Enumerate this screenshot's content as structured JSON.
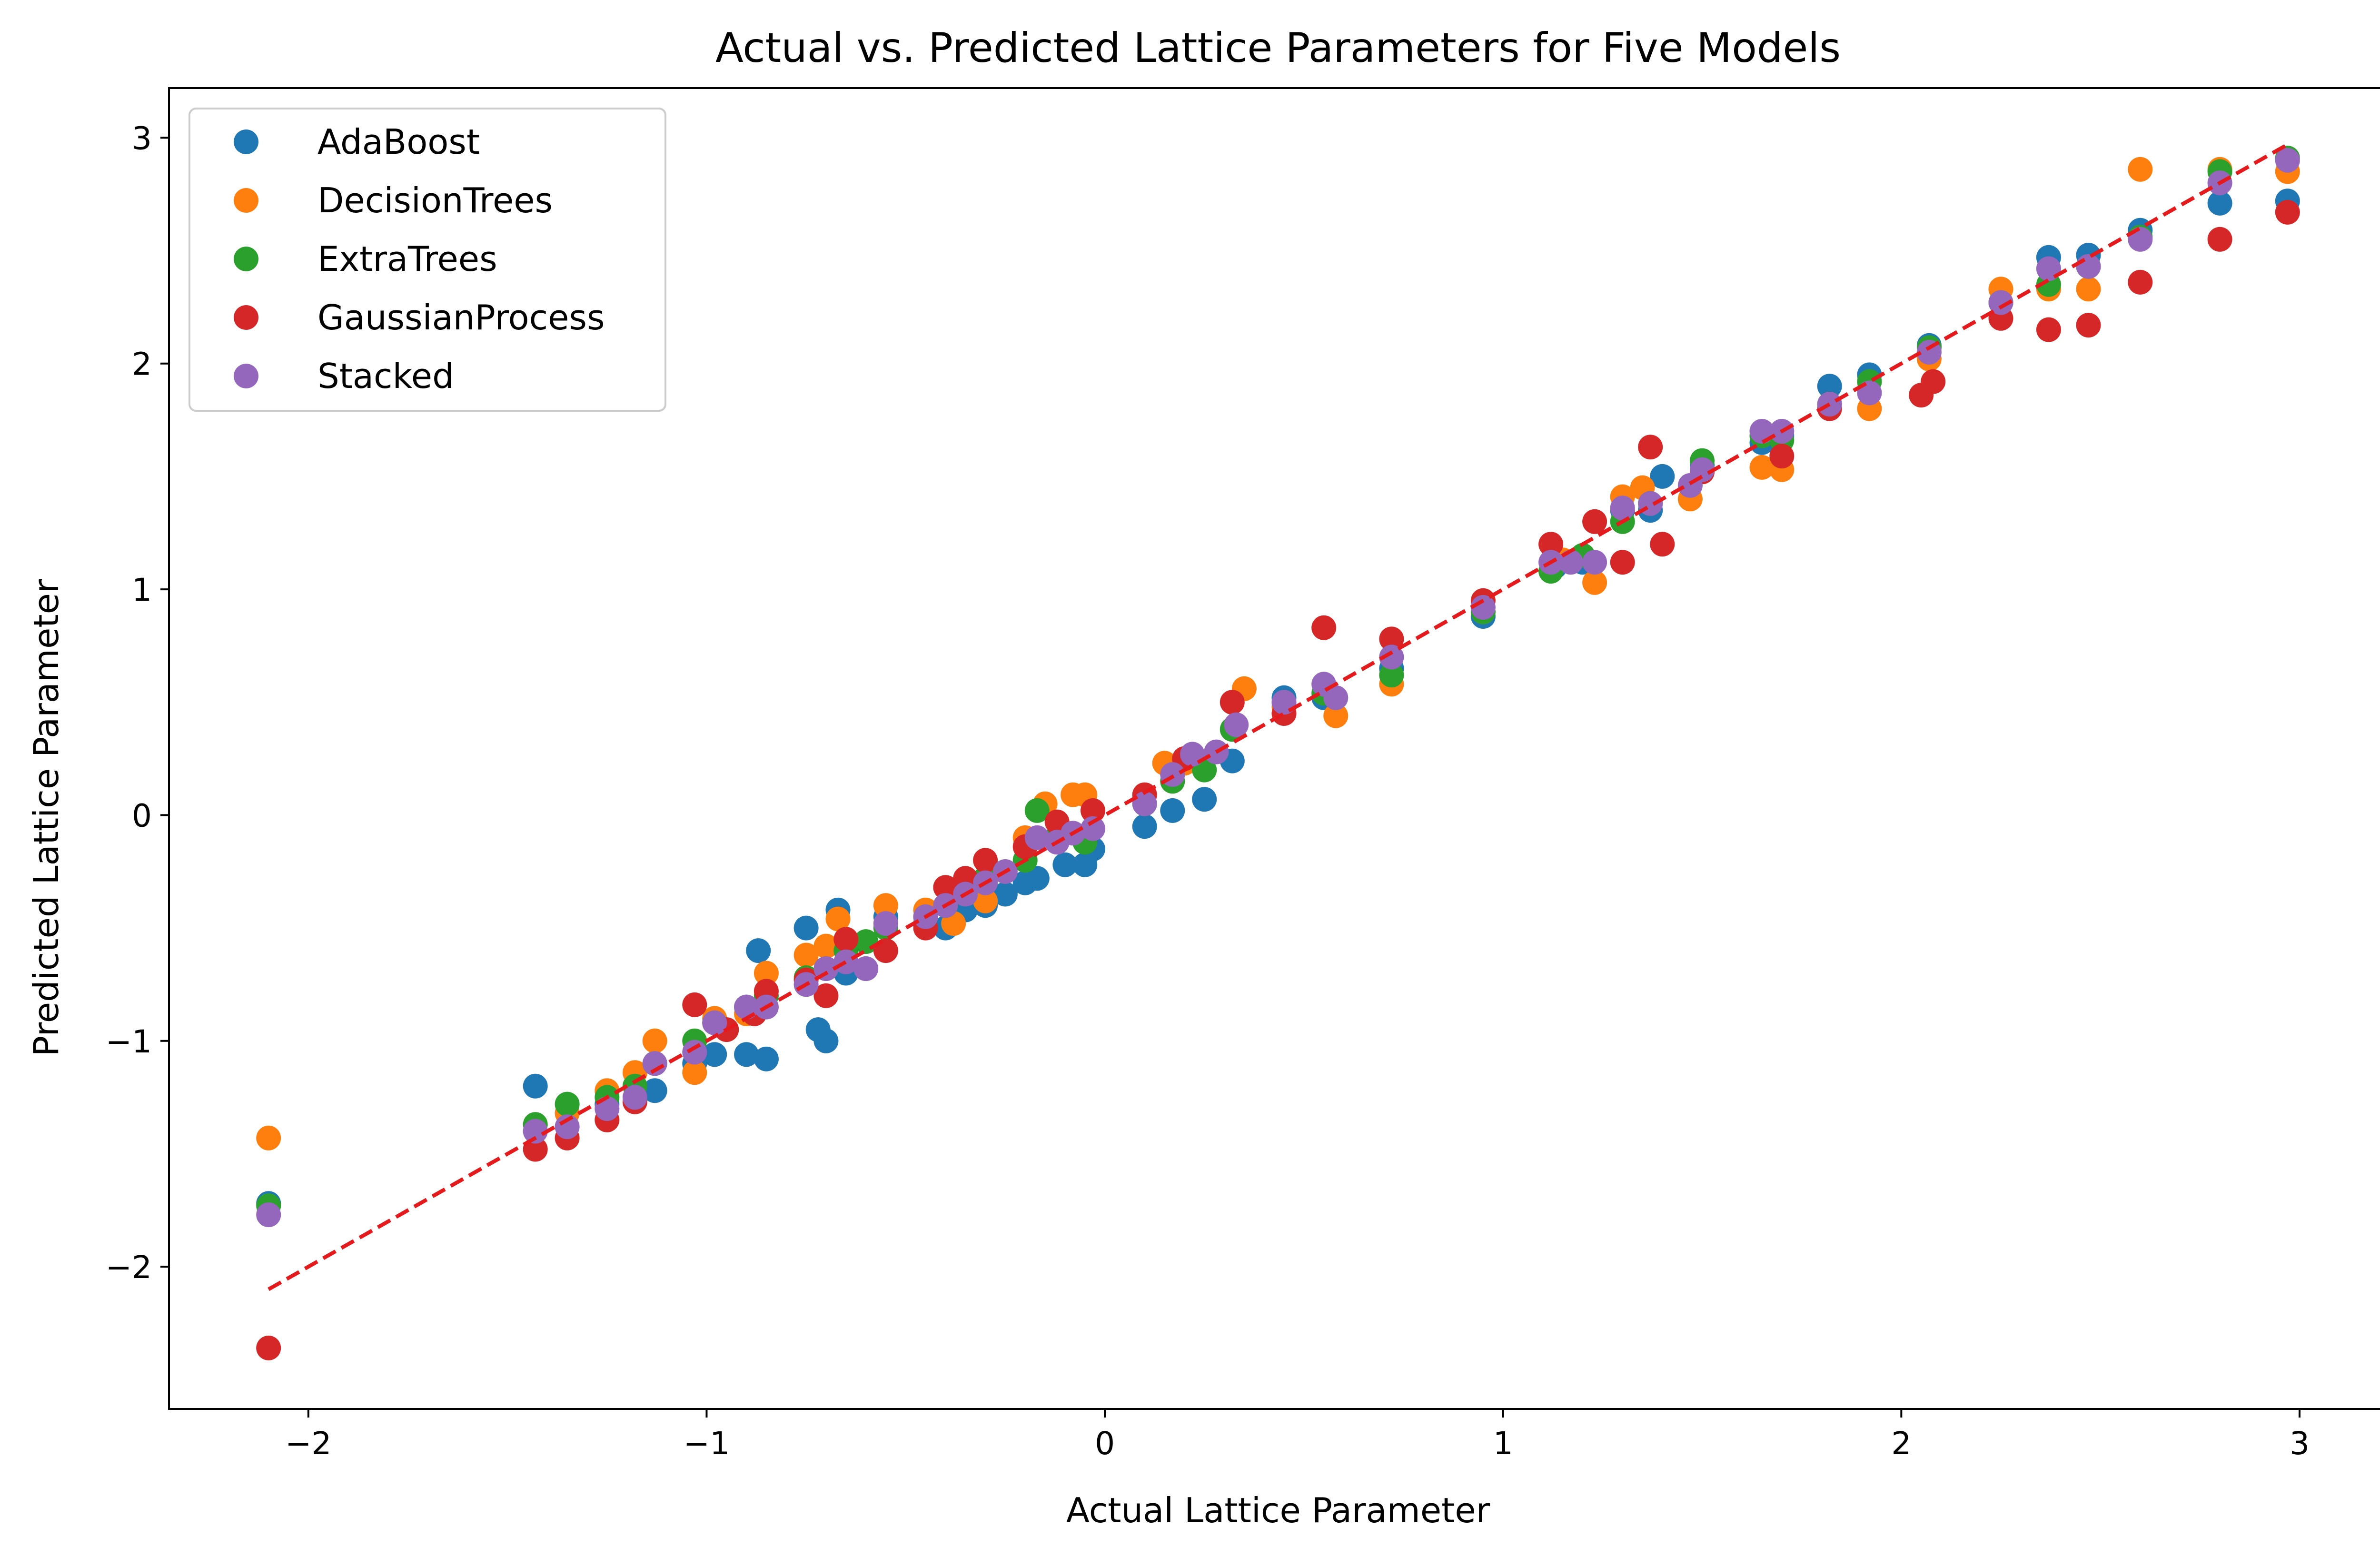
{
  "chart_data": {
    "type": "scatter",
    "title": "Actual vs. Predicted Lattice Parameters for Five Models",
    "xlabel": "Actual Lattice Parameter",
    "ylabel": "Predicted Lattice Parameter",
    "xlim": [
      -2.35,
      3.22
    ],
    "ylim": [
      -2.63,
      3.22
    ],
    "xticks": [
      -2,
      -1,
      0,
      1,
      2,
      3
    ],
    "yticks": [
      -2,
      -1,
      0,
      1,
      2,
      3
    ],
    "xtick_labels": [
      "−2",
      "−1",
      "0",
      "1",
      "2",
      "3"
    ],
    "ytick_labels": [
      "−2",
      "−1",
      "0",
      "1",
      "2",
      "3"
    ],
    "grid": false,
    "legend_position": "top-left",
    "reference_line": {
      "style": "dashed",
      "color": "#e41a1c",
      "x": [
        -2.1,
        2.97
      ],
      "y": [
        -2.1,
        2.97
      ]
    },
    "series": [
      {
        "name": "AdaBoost",
        "color": "#1f77b4",
        "x": [
          -2.1,
          -1.43,
          -1.35,
          -1.25,
          -1.13,
          -1.03,
          -0.98,
          -0.9,
          -0.87,
          -0.85,
          -0.75,
          -0.72,
          -0.7,
          -0.67,
          -0.65,
          -0.6,
          -0.55,
          -0.45,
          -0.4,
          -0.35,
          -0.3,
          -0.25,
          -0.2,
          -0.17,
          -0.1,
          -0.05,
          -0.03,
          0.1,
          0.17,
          0.25,
          0.32,
          0.45,
          0.55,
          0.72,
          0.95,
          1.13,
          1.2,
          1.3,
          1.37,
          1.4,
          1.5,
          1.65,
          1.7,
          1.82,
          1.92,
          2.07,
          2.25,
          2.37,
          2.47,
          2.6,
          2.8,
          2.97
        ],
        "y": [
          -1.72,
          -1.2,
          -1.32,
          -1.28,
          -1.22,
          -1.1,
          -1.06,
          -1.06,
          -0.6,
          -1.08,
          -0.5,
          -0.95,
          -1.0,
          -0.42,
          -0.7,
          -0.68,
          -0.45,
          -0.48,
          -0.5,
          -0.42,
          -0.4,
          -0.35,
          -0.3,
          -0.28,
          -0.22,
          -0.22,
          -0.15,
          -0.05,
          0.02,
          0.07,
          0.24,
          0.52,
          0.52,
          0.65,
          0.88,
          1.1,
          1.12,
          1.35,
          1.35,
          1.5,
          1.55,
          1.65,
          1.68,
          1.9,
          1.95,
          2.08,
          2.27,
          2.47,
          2.48,
          2.59,
          2.71,
          2.72
        ]
      },
      {
        "name": "DecisionTrees",
        "color": "#ff7f0e",
        "x": [
          -2.1,
          -1.35,
          -1.25,
          -1.18,
          -1.13,
          -1.03,
          -0.98,
          -0.9,
          -0.85,
          -0.75,
          -0.7,
          -0.67,
          -0.55,
          -0.45,
          -0.38,
          -0.3,
          -0.2,
          -0.15,
          -0.08,
          -0.05,
          0.15,
          0.2,
          0.35,
          0.45,
          0.58,
          0.72,
          0.95,
          1.15,
          1.23,
          1.3,
          1.35,
          1.47,
          1.65,
          1.7,
          1.82,
          1.92,
          2.07,
          2.25,
          2.37,
          2.47,
          2.6,
          2.8,
          2.97
        ],
        "y": [
          -1.43,
          -1.32,
          -1.22,
          -1.14,
          -1.0,
          -1.14,
          -0.9,
          -0.88,
          -0.7,
          -0.62,
          -0.58,
          -0.46,
          -0.4,
          -0.42,
          -0.48,
          -0.38,
          -0.1,
          0.05,
          0.09,
          0.09,
          0.23,
          0.23,
          0.56,
          0.48,
          0.44,
          0.58,
          0.9,
          1.13,
          1.03,
          1.41,
          1.45,
          1.4,
          1.54,
          1.53,
          1.82,
          1.8,
          2.02,
          2.33,
          2.33,
          2.33,
          2.86,
          2.86,
          2.85
        ]
      },
      {
        "name": "ExtraTrees",
        "color": "#2ca02c",
        "x": [
          -2.1,
          -1.43,
          -1.35,
          -1.25,
          -1.18,
          -1.13,
          -1.03,
          -0.98,
          -0.9,
          -0.85,
          -0.75,
          -0.7,
          -0.65,
          -0.6,
          -0.55,
          -0.45,
          -0.4,
          -0.35,
          -0.3,
          -0.2,
          -0.17,
          -0.12,
          -0.05,
          0.1,
          0.17,
          0.25,
          0.32,
          0.45,
          0.55,
          0.72,
          0.95,
          1.12,
          1.2,
          1.3,
          1.37,
          1.5,
          1.65,
          1.7,
          1.82,
          1.92,
          2.07,
          2.25,
          2.37,
          2.47,
          2.6,
          2.8,
          2.97
        ],
        "y": [
          -1.73,
          -1.37,
          -1.28,
          -1.25,
          -1.2,
          -1.1,
          -1.0,
          -0.92,
          -0.85,
          -0.8,
          -0.72,
          -0.68,
          -0.6,
          -0.56,
          -0.5,
          -0.45,
          -0.4,
          -0.35,
          -0.28,
          -0.2,
          0.02,
          -0.1,
          -0.12,
          0.05,
          0.15,
          0.2,
          0.38,
          0.5,
          0.54,
          0.62,
          0.9,
          1.08,
          1.15,
          1.3,
          1.38,
          1.57,
          1.68,
          1.66,
          1.82,
          1.92,
          2.07,
          2.27,
          2.35,
          2.43,
          2.56,
          2.85,
          2.91
        ]
      },
      {
        "name": "GaussianProcess",
        "color": "#d62728",
        "x": [
          -2.1,
          -1.43,
          -1.35,
          -1.25,
          -1.18,
          -1.03,
          -0.95,
          -0.88,
          -0.85,
          -0.75,
          -0.7,
          -0.65,
          -0.55,
          -0.45,
          -0.4,
          -0.35,
          -0.3,
          -0.2,
          -0.12,
          -0.03,
          0.1,
          0.2,
          0.32,
          0.45,
          0.55,
          0.72,
          0.95,
          1.12,
          1.23,
          1.3,
          1.37,
          1.4,
          1.5,
          1.7,
          1.82,
          2.05,
          2.08,
          2.25,
          2.37,
          2.47,
          2.6,
          2.8,
          2.97
        ],
        "y": [
          -2.36,
          -1.48,
          -1.43,
          -1.35,
          -1.27,
          -0.84,
          -0.95,
          -0.88,
          -0.78,
          -0.73,
          -0.8,
          -0.55,
          -0.6,
          -0.5,
          -0.32,
          -0.28,
          -0.2,
          -0.14,
          -0.03,
          0.02,
          0.09,
          0.25,
          0.5,
          0.45,
          0.83,
          0.78,
          0.95,
          1.2,
          1.3,
          1.12,
          1.63,
          1.2,
          1.52,
          1.59,
          1.8,
          1.86,
          1.92,
          2.2,
          2.15,
          2.17,
          2.36,
          2.55,
          2.67
        ]
      },
      {
        "name": "Stacked",
        "color": "#9467bd",
        "x": [
          -2.1,
          -1.43,
          -1.35,
          -1.25,
          -1.18,
          -1.13,
          -1.03,
          -0.98,
          -0.9,
          -0.85,
          -0.75,
          -0.7,
          -0.65,
          -0.6,
          -0.55,
          -0.45,
          -0.4,
          -0.35,
          -0.3,
          -0.25,
          -0.17,
          -0.12,
          -0.08,
          -0.03,
          0.1,
          0.17,
          0.22,
          0.28,
          0.33,
          0.45,
          0.55,
          0.58,
          0.72,
          0.95,
          1.12,
          1.17,
          1.23,
          1.3,
          1.37,
          1.47,
          1.5,
          1.65,
          1.7,
          1.82,
          1.92,
          2.07,
          2.25,
          2.37,
          2.47,
          2.6,
          2.8,
          2.97
        ],
        "y": [
          -1.77,
          -1.4,
          -1.38,
          -1.3,
          -1.25,
          -1.1,
          -1.05,
          -0.92,
          -0.85,
          -0.85,
          -0.75,
          -0.68,
          -0.65,
          -0.68,
          -0.48,
          -0.45,
          -0.4,
          -0.35,
          -0.3,
          -0.25,
          -0.1,
          -0.12,
          -0.08,
          -0.06,
          0.05,
          0.18,
          0.27,
          0.28,
          0.4,
          0.5,
          0.58,
          0.52,
          0.7,
          0.92,
          1.12,
          1.12,
          1.12,
          1.36,
          1.38,
          1.46,
          1.53,
          1.7,
          1.7,
          1.82,
          1.87,
          2.05,
          2.27,
          2.42,
          2.43,
          2.55,
          2.8,
          2.9
        ]
      }
    ]
  }
}
